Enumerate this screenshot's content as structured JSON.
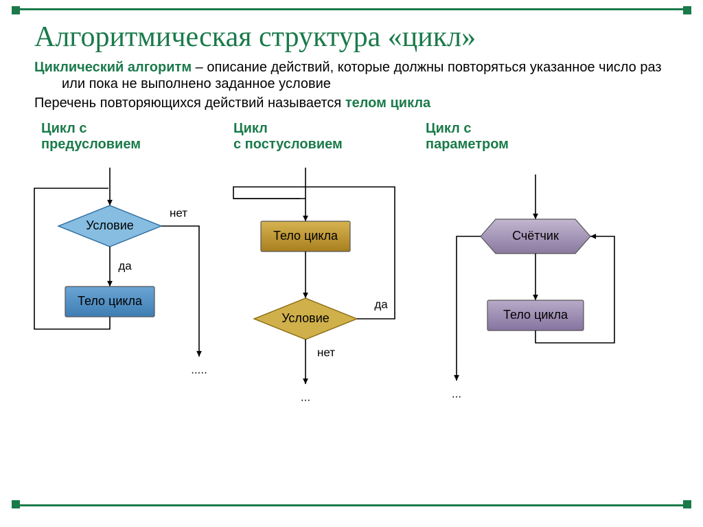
{
  "title": "Алгоритмическая структура «цикл»",
  "definition_bold": "Циклический алгоритм",
  "definition_rest": " – описание действий, которые должны повторяться указанное число раз или пока не выполнено заданное условие",
  "line2_pre": "Перечень повторяющихся действий называется ",
  "line2_bold": "телом цикла",
  "subhead1_l1": "Цикл с",
  "subhead1_l2": "предусловием",
  "subhead2_l1": "Цикл",
  "subhead2_l2": "с постусловием",
  "subhead3_l1": "Цикл с",
  "subhead3_l2": "параметром",
  "labels": {
    "condition": "Условие",
    "body": "Тело цикла",
    "counter": "Счётчик",
    "yes": "да",
    "no": "нет",
    "dots": "...",
    "dots5": "....."
  },
  "colors": {
    "text": "#000000",
    "arrow": "#000000",
    "d1_diamond_fill": "#86bde0",
    "d1_diamond_stroke": "#2a6aa0",
    "d1_rect_fill_top": "#6aa5d4",
    "d1_rect_fill_bot": "#3f7db3",
    "d2_rect_fill_top": "#d6b350",
    "d2_rect_fill_bot": "#a87f1f",
    "d2_diamond_fill": "#d0b04a",
    "d2_diamond_stroke": "#8a6a10",
    "d3_hex_fill_top": "#c2b6d0",
    "d3_hex_fill_bot": "#8a7aa0",
    "d3_rect_fill_top": "#b8aac8",
    "d3_rect_fill_bot": "#8574a0",
    "stroke_grey": "#555555"
  },
  "dims": {
    "diamond_w": 150,
    "diamond_h": 60,
    "rect_w": 130,
    "rect_h": 44,
    "hex_w": 160,
    "hex_h": 50,
    "arrow_head": 9,
    "font_label": 18,
    "font_edge": 17
  }
}
